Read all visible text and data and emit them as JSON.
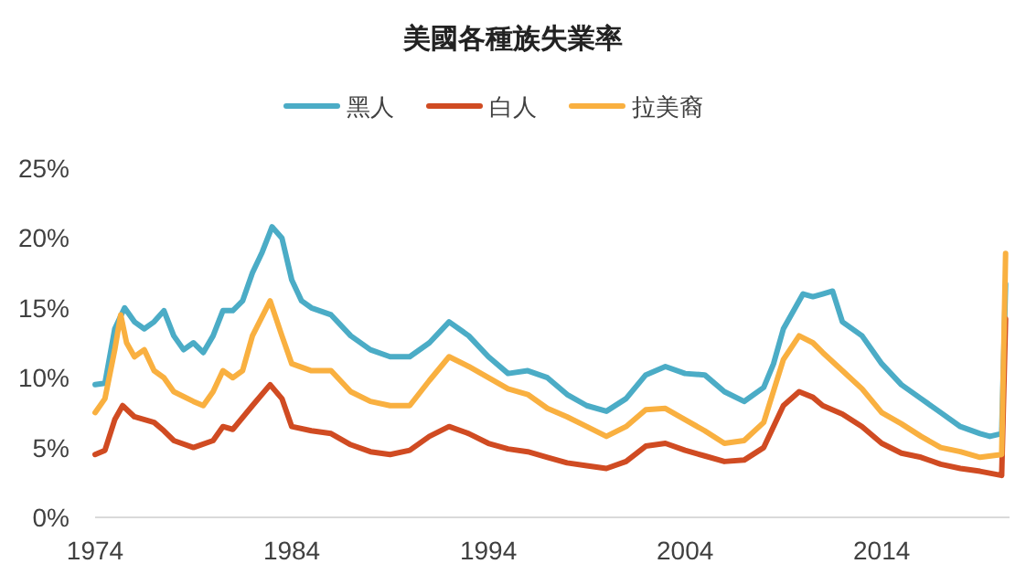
{
  "chart_data": {
    "type": "line",
    "title": "美國各種族失業率",
    "legend": "top",
    "grid": false,
    "line_style": "solid",
    "xlim": [
      1974,
      2020.5
    ],
    "xticks": [
      1974,
      1984,
      1994,
      2004,
      2014
    ],
    "ylim": [
      0,
      25
    ],
    "yticks": [
      {
        "value": 0,
        "label": "0%"
      },
      {
        "value": 5,
        "label": "5%"
      },
      {
        "value": 10,
        "label": "10%"
      },
      {
        "value": 15,
        "label": "15%"
      },
      {
        "value": 20,
        "label": "20%"
      },
      {
        "value": 25,
        "label": "25%"
      }
    ],
    "series": [
      {
        "name": "黑人",
        "color": "#4bacc6",
        "x": [
          1974,
          1974.5,
          1975,
          1975.5,
          1976,
          1976.5,
          1977,
          1977.5,
          1978,
          1978.5,
          1979,
          1979.5,
          1980,
          1980.5,
          1981,
          1981.5,
          1982,
          1982.5,
          1983,
          1983.5,
          1984,
          1984.5,
          1985,
          1986,
          1987,
          1988,
          1989,
          1990,
          1991,
          1992,
          1993,
          1994,
          1995,
          1996,
          1997,
          1998,
          1999,
          2000,
          2001,
          2002,
          2003,
          2004,
          2005,
          2006,
          2007,
          2008,
          2008.5,
          2009,
          2010,
          2010.5,
          2011,
          2011.5,
          2012,
          2013,
          2014,
          2015,
          2016,
          2017,
          2018,
          2019,
          2019.5,
          2020.1,
          2020.3
        ],
        "values": [
          9.5,
          9.6,
          13.5,
          15,
          14,
          13.5,
          14,
          14.8,
          13,
          12,
          12.5,
          11.8,
          13,
          14.8,
          14.8,
          15.5,
          17.5,
          19,
          20.8,
          20,
          17,
          15.5,
          15,
          14.5,
          13,
          12,
          11.5,
          11.5,
          12.5,
          14,
          13,
          11.5,
          10.3,
          10.5,
          10,
          8.8,
          8,
          7.6,
          8.5,
          10.2,
          10.8,
          10.3,
          10.2,
          9,
          8.3,
          9.3,
          11,
          13.5,
          16,
          15.8,
          16,
          16.2,
          14,
          13,
          11,
          9.5,
          8.5,
          7.5,
          6.5,
          6,
          5.8,
          6,
          16.7
        ]
      },
      {
        "name": "白人",
        "color": "#d04b22",
        "x": [
          1974,
          1974.5,
          1975,
          1975.4,
          1976,
          1977,
          1977.5,
          1978,
          1979,
          1980,
          1980.5,
          1981,
          1982,
          1982.9,
          1983.5,
          1984,
          1985,
          1986,
          1987,
          1988,
          1989,
          1990,
          1991,
          1992,
          1993,
          1994,
          1995,
          1996,
          1997,
          1998,
          1999,
          2000,
          2001,
          2002,
          2003,
          2004,
          2005,
          2006,
          2007,
          2008,
          2009,
          2009.8,
          2010.5,
          2011,
          2012,
          2013,
          2014,
          2015,
          2016,
          2017,
          2018,
          2019,
          2020.1,
          2020.3
        ],
        "values": [
          4.5,
          4.8,
          7,
          8,
          7.2,
          6.8,
          6.2,
          5.5,
          5,
          5.5,
          6.5,
          6.3,
          8,
          9.5,
          8.5,
          6.5,
          6.2,
          6,
          5.2,
          4.7,
          4.5,
          4.8,
          5.8,
          6.5,
          6,
          5.3,
          4.9,
          4.7,
          4.3,
          3.9,
          3.7,
          3.5,
          4,
          5.1,
          5.3,
          4.8,
          4.4,
          4,
          4.1,
          5,
          8,
          9,
          8.6,
          8,
          7.4,
          6.5,
          5.3,
          4.6,
          4.3,
          3.8,
          3.5,
          3.3,
          3,
          14.2
        ]
      },
      {
        "name": "拉美裔",
        "color": "#f9b040",
        "x": [
          1974,
          1974.5,
          1975,
          1975.3,
          1975.6,
          1976,
          1976.5,
          1977,
          1977.5,
          1978,
          1979,
          1979.5,
          1980,
          1980.5,
          1981,
          1981.5,
          1982,
          1982.9,
          1983.5,
          1984,
          1985,
          1986,
          1987,
          1988,
          1989,
          1990,
          1991,
          1992,
          1993,
          1994,
          1995,
          1996,
          1997,
          1998,
          1999,
          2000,
          2001,
          2002,
          2003,
          2004,
          2005,
          2006,
          2007,
          2008,
          2009,
          2009.8,
          2010.5,
          2011,
          2012,
          2013,
          2014,
          2015,
          2016,
          2017,
          2018,
          2019,
          2020.1,
          2020.3
        ],
        "values": [
          7.5,
          8.5,
          12,
          14.5,
          12.5,
          11.5,
          12,
          10.5,
          10,
          9,
          8.3,
          8,
          9,
          10.5,
          10,
          10.5,
          13,
          15.5,
          13,
          11,
          10.5,
          10.5,
          9,
          8.3,
          8,
          8,
          9.8,
          11.5,
          10.8,
          10,
          9.2,
          8.8,
          7.8,
          7.2,
          6.5,
          5.8,
          6.5,
          7.7,
          7.8,
          7,
          6.2,
          5.3,
          5.5,
          6.8,
          11.3,
          13,
          12.5,
          11.8,
          10.5,
          9.2,
          7.5,
          6.7,
          5.8,
          5,
          4.7,
          4.3,
          4.5,
          18.9
        ]
      }
    ]
  }
}
